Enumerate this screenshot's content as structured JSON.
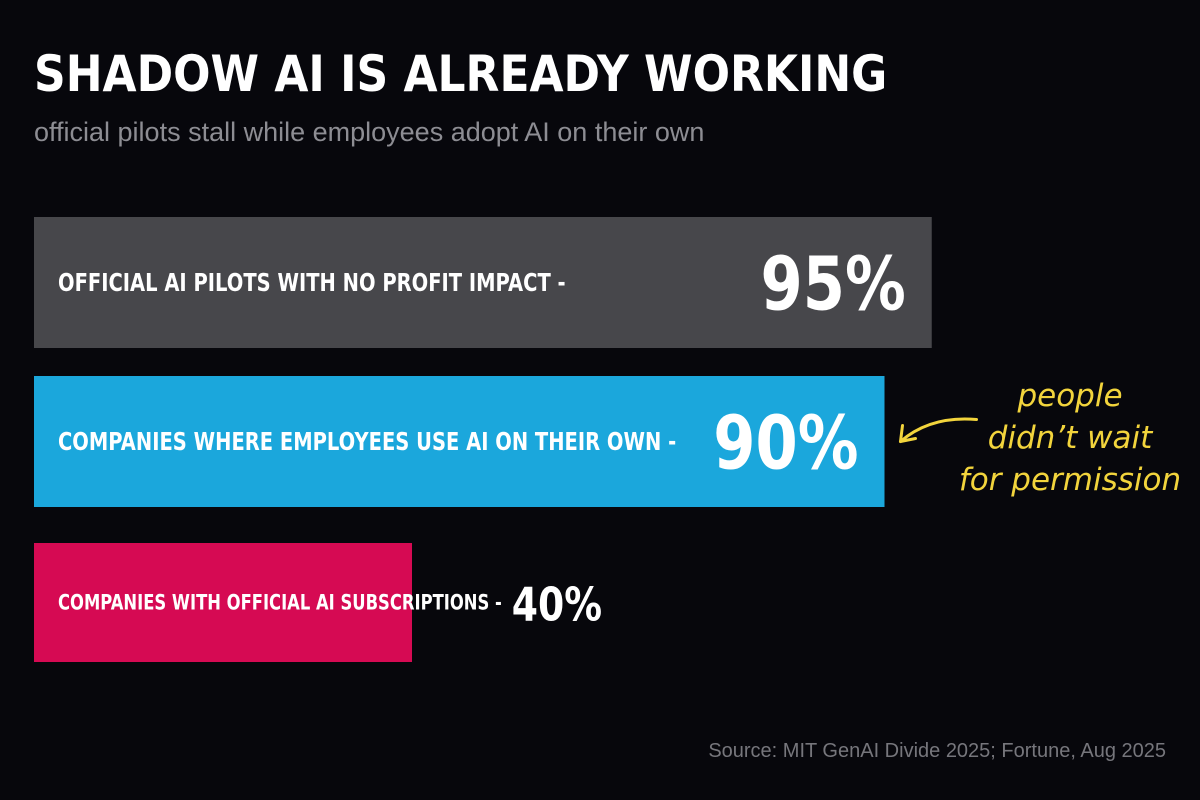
{
  "chart_data": {
    "type": "bar",
    "orientation": "horizontal",
    "title": "SHADOW AI IS ALREADY WORKING",
    "subtitle": "official pilots stall while employees adopt AI on their own",
    "categories": [
      "OFFICIAL AI PILOTS WITH NO PROFIT IMPACT -",
      "COMPANIES WHERE EMPLOYEES USE AI ON THEIR OWN -",
      "COMPANIES WITH OFFICIAL AI SUBSCRIPTIONS -"
    ],
    "values": [
      95,
      90,
      40
    ],
    "value_labels": [
      "95%",
      "90%",
      "40%"
    ],
    "colors": [
      "#47474b",
      "#1ba7dc",
      "#d60a53"
    ],
    "xlim": [
      0,
      100
    ],
    "grid": false,
    "annotation": {
      "lines": [
        "people",
        "didn’t wait",
        "for permission"
      ],
      "color": "#f2d43c",
      "target_index": 1
    },
    "source": "Source: MIT GenAI Divide 2025; Fortune, Aug 2025"
  }
}
